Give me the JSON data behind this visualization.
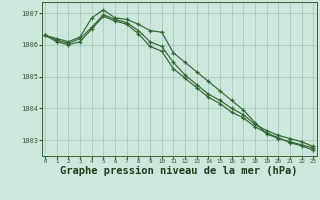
{
  "background_color": "#cce8dd",
  "grid_color": "#aaccbb",
  "line_color": "#336633",
  "xlabel": "Graphe pression niveau de la mer (hPa)",
  "xlabel_fontsize": 7.5,
  "ylabel_ticks": [
    1003,
    1004,
    1005,
    1006,
    1007
  ],
  "xlim": [
    -0.3,
    23.3
  ],
  "ylim": [
    1002.5,
    1007.35
  ],
  "series": [
    [
      1006.3,
      1006.2,
      1006.1,
      1006.25,
      1006.85,
      1007.1,
      1006.85,
      1006.8,
      1006.65,
      1006.45,
      1006.4,
      1005.75,
      1005.45,
      1005.15,
      1004.85,
      1004.55,
      1004.25,
      1003.95,
      1003.55,
      1003.2,
      1003.05,
      1002.95,
      1002.85,
      1002.75
    ],
    [
      1006.3,
      1006.15,
      1006.05,
      1006.2,
      1006.55,
      1006.95,
      1006.8,
      1006.7,
      1006.45,
      1006.1,
      1005.95,
      1005.45,
      1005.05,
      1004.75,
      1004.45,
      1004.25,
      1004.0,
      1003.8,
      1003.5,
      1003.3,
      1003.15,
      1003.05,
      1002.95,
      1002.8
    ],
    [
      1006.3,
      1006.1,
      1006.0,
      1006.1,
      1006.5,
      1006.9,
      1006.75,
      1006.65,
      1006.35,
      1005.95,
      1005.8,
      1005.25,
      1004.95,
      1004.65,
      1004.35,
      1004.15,
      1003.88,
      1003.7,
      1003.42,
      1003.22,
      1003.08,
      1002.92,
      1002.82,
      1002.68
    ]
  ]
}
